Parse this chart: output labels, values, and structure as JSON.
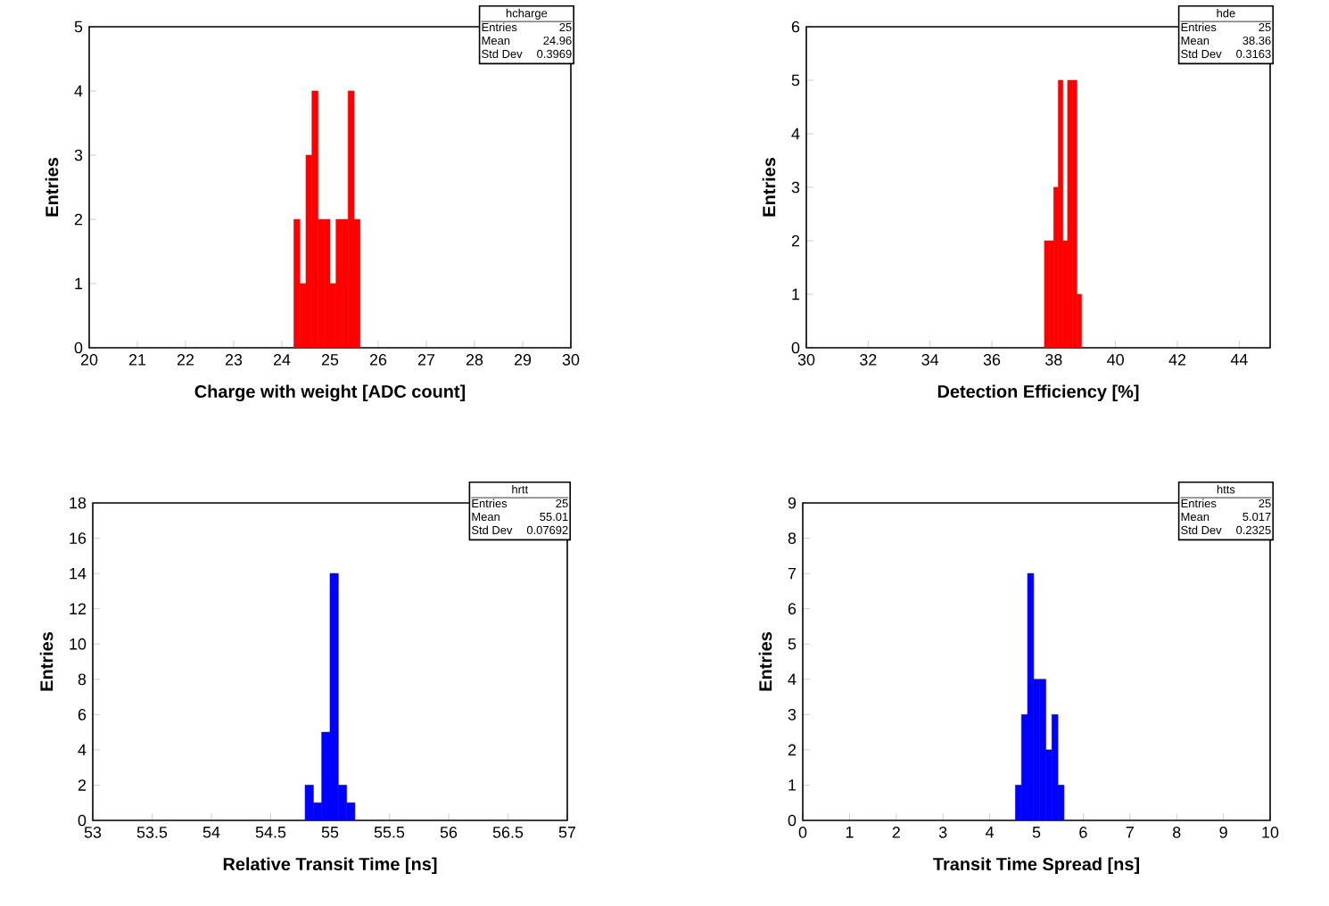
{
  "chart_data": [
    {
      "type": "histogram",
      "xlabel": "Charge with weight [ADC count]",
      "ylabel": "Entries",
      "color": "#ff0000",
      "bins": [
        24.25,
        24.375,
        24.5,
        24.625,
        24.75,
        24.875,
        25.0,
        25.125,
        25.25,
        25.375,
        25.5,
        25.625
      ],
      "values": [
        2,
        1,
        3,
        4,
        2,
        2,
        1,
        2,
        2,
        4,
        2
      ],
      "xlim": [
        20,
        30
      ],
      "ylim": [
        0,
        5
      ],
      "xticks": [
        20,
        21,
        22,
        23,
        24,
        25,
        26,
        27,
        28,
        29,
        30
      ],
      "yticks": [
        0,
        1,
        2,
        3,
        4,
        5
      ],
      "annotations": [
        "hcharge",
        "Entries",
        "25",
        "Mean",
        "24.96",
        "Std Dev",
        "0.3969"
      ]
    },
    {
      "type": "histogram",
      "xlabel": "Detection Efficiency [%]",
      "ylabel": "Entries",
      "color": "#ff0000",
      "bins": [
        37.7,
        37.85,
        38.0,
        38.15,
        38.3,
        38.45,
        38.6,
        38.75,
        38.9
      ],
      "values": [
        2,
        2,
        3,
        5,
        2,
        5,
        5,
        1
      ],
      "xlim": [
        30,
        45
      ],
      "ylim": [
        0,
        6
      ],
      "xticks": [
        30,
        32,
        34,
        36,
        38,
        40,
        42,
        44
      ],
      "yticks": [
        0,
        1,
        2,
        3,
        4,
        5,
        6
      ],
      "annotations": [
        "hde",
        "Entries",
        "25",
        "Mean",
        "38.36",
        "Std Dev",
        "0.3163"
      ]
    },
    {
      "type": "histogram",
      "xlabel": "Relative Transit Time [ns]",
      "ylabel": "Entries",
      "color": "#0000ff",
      "bins": [
        54.79,
        54.86,
        54.93,
        55.0,
        55.07,
        55.14,
        55.21
      ],
      "values": [
        2,
        1,
        5,
        14,
        2,
        1
      ],
      "xlim": [
        53,
        57
      ],
      "ylim": [
        0,
        18
      ],
      "xticks": [
        53,
        53.5,
        54,
        54.5,
        55,
        55.5,
        56,
        56.5,
        57
      ],
      "yticks": [
        0,
        2,
        4,
        6,
        8,
        10,
        12,
        14,
        16,
        18
      ],
      "annotations": [
        "hrtt",
        "Entries",
        "25",
        "Mean",
        "55.01",
        "Std Dev",
        "0.07692"
      ]
    },
    {
      "type": "histogram",
      "xlabel": "Transit Time Spread [ns]",
      "ylabel": "Entries",
      "color": "#0000ff",
      "bins": [
        4.55,
        4.68,
        4.81,
        4.94,
        5.07,
        5.2,
        5.33,
        5.46,
        5.59
      ],
      "values": [
        1,
        3,
        7,
        4,
        4,
        2,
        3,
        1
      ],
      "xlim": [
        0,
        10
      ],
      "ylim": [
        0,
        9
      ],
      "xticks": [
        0,
        1,
        2,
        3,
        4,
        5,
        6,
        7,
        8,
        9,
        10
      ],
      "yticks": [
        0,
        1,
        2,
        3,
        4,
        5,
        6,
        7,
        8,
        9
      ],
      "annotations": [
        "htts",
        "Entries",
        "25",
        "Mean",
        "5.017",
        "Std Dev",
        "0.2325"
      ]
    }
  ]
}
